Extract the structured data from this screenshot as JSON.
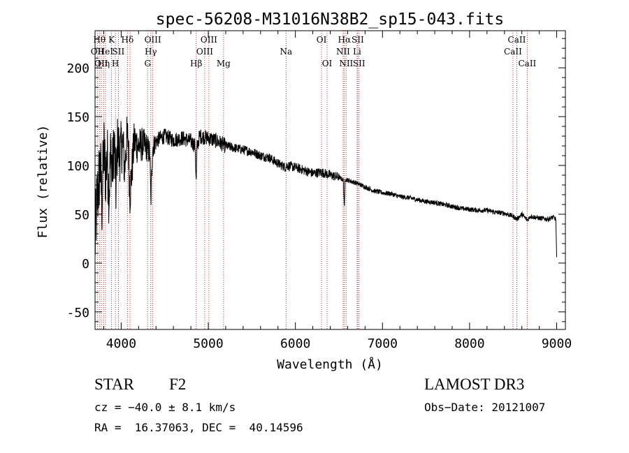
{
  "chart_data": {
    "type": "line",
    "title": "spec-56208-M31016N38B2_sp15-043.fits",
    "xlabel": "Wavelength (Å)",
    "ylabel": "Flux (relative)",
    "xlim": [
      3700,
      9100
    ],
    "ylim": [
      -68,
      238
    ],
    "xticks": [
      4000,
      5000,
      6000,
      7000,
      8000,
      9000
    ],
    "yticks": [
      -50,
      0,
      50,
      100,
      150,
      200
    ],
    "spectrum": {
      "x": [
        3700,
        3720,
        3740,
        3760,
        3780,
        3800,
        3820,
        3840,
        3860,
        3880,
        3900,
        3920,
        3940,
        3960,
        3980,
        4000,
        4020,
        4040,
        4060,
        4080,
        4100,
        4150,
        4200,
        4250,
        4300,
        4330,
        4340,
        4360,
        4400,
        4450,
        4500,
        4600,
        4700,
        4800,
        4850,
        4861,
        4870,
        4900,
        5000,
        5100,
        5200,
        5300,
        5400,
        5500,
        5600,
        5700,
        5800,
        5890,
        5900,
        6000,
        6100,
        6200,
        6300,
        6400,
        6500,
        6550,
        6563,
        6570,
        6600,
        6700,
        6800,
        6900,
        7000,
        7100,
        7200,
        7300,
        7400,
        7500,
        7600,
        7700,
        7800,
        7900,
        8000,
        8100,
        8200,
        8300,
        8400,
        8498,
        8542,
        8600,
        8662,
        8700,
        8800,
        8900,
        8960,
        8990,
        9000
      ],
      "y": [
        20,
        60,
        80,
        100,
        60,
        120,
        90,
        110,
        70,
        115,
        95,
        125,
        75,
        128,
        110,
        118,
        122,
        95,
        125,
        128,
        70,
        125,
        120,
        122,
        118,
        112,
        60,
        118,
        125,
        128,
        130,
        126,
        128,
        125,
        120,
        80,
        118,
        130,
        128,
        125,
        120,
        118,
        116,
        114,
        110,
        108,
        102,
        98,
        100,
        98,
        95,
        92,
        93,
        90,
        88,
        85,
        55,
        86,
        85,
        82,
        78,
        74,
        72,
        71,
        68,
        67,
        65,
        63,
        62,
        60,
        58,
        56,
        55,
        54,
        54,
        52,
        51,
        48,
        45,
        50,
        44,
        48,
        46,
        45,
        47,
        45,
        5
      ]
    },
    "lines": [
      {
        "wave": 3727,
        "label": "OII",
        "row": 2
      },
      {
        "wave": 3750,
        "label": "Hθ",
        "row": 1
      },
      {
        "wave": 3771,
        "label": "OII",
        "row": 3
      },
      {
        "wave": 3798,
        "label": "Hη",
        "row": 3
      },
      {
        "wave": 3820,
        "label": "HeI",
        "row": 2
      },
      {
        "wave": 3889,
        "label": "K",
        "row": 1
      },
      {
        "wave": 3934,
        "label": "H",
        "row": 3
      },
      {
        "wave": 3968,
        "label": "SII",
        "row": 2
      },
      {
        "wave": 4072,
        "label": "Hδ",
        "row": 1
      },
      {
        "wave": 4102,
        "label": "",
        "row": 1
      },
      {
        "wave": 4304,
        "label": "G",
        "row": 3
      },
      {
        "wave": 4340,
        "label": "Hγ",
        "row": 2
      },
      {
        "wave": 4363,
        "label": "OIII",
        "row": 1
      },
      {
        "wave": 4861,
        "label": "Hβ",
        "row": 3
      },
      {
        "wave": 4959,
        "label": "OIII",
        "row": 2
      },
      {
        "wave": 5007,
        "label": "OIII",
        "row": 1
      },
      {
        "wave": 5175,
        "label": "Mg",
        "row": 3
      },
      {
        "wave": 5893,
        "label": "Na",
        "row": 2
      },
      {
        "wave": 6300,
        "label": "OI",
        "row": 1
      },
      {
        "wave": 6364,
        "label": "OI",
        "row": 3
      },
      {
        "wave": 6548,
        "label": "NII",
        "row": 2
      },
      {
        "wave": 6563,
        "label": "Hα",
        "row": 1
      },
      {
        "wave": 6583,
        "label": "NII",
        "row": 3
      },
      {
        "wave": 6708,
        "label": "Li",
        "row": 2
      },
      {
        "wave": 6716,
        "label": "SII",
        "row": 1
      },
      {
        "wave": 6731,
        "label": "SII",
        "row": 3
      },
      {
        "wave": 8498,
        "label": "CaII",
        "row": 2
      },
      {
        "wave": 8542,
        "label": "CaII",
        "row": 1
      },
      {
        "wave": 8662,
        "label": "CaII",
        "row": 3
      }
    ]
  },
  "info": {
    "class": "STAR",
    "subclass": "F2",
    "survey": "LAMOST DR3",
    "cz": "cz = −40.0 ± 8.1 km/s",
    "obs_date": "Obs−Date: 20121007",
    "coords": "RA =  16.37063, DEC =  40.14596"
  }
}
